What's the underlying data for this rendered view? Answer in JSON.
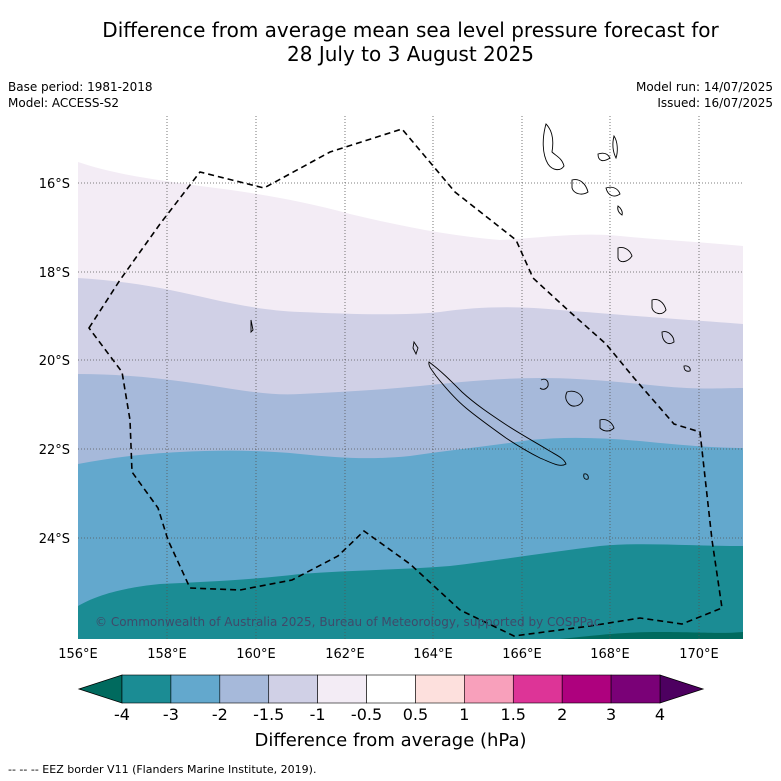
{
  "title_line1": "Difference from average mean sea level pressure forecast for",
  "title_line2": "28 July to 3 August 2025",
  "meta_left": {
    "line1": "Base period: 1981-2018",
    "line2": "Model: ACCESS-S2"
  },
  "meta_right": {
    "line1": "Model run: 14/07/2025",
    "line2": "Issued: 16/07/2025"
  },
  "copyright": "© Commonwealth of Australia 2025, Bureau of Meteorology, supported by COSPPac",
  "lat_labels": [
    "16°S",
    "18°S",
    "20°S",
    "22°S",
    "24°S"
  ],
  "lon_labels": [
    "156°E",
    "158°E",
    "160°E",
    "162°E",
    "164°E",
    "166°E",
    "168°E",
    "170°E"
  ],
  "colorbar": {
    "ticks": [
      "-4",
      "-3",
      "-2",
      "-1.5",
      "-1",
      "-0.5",
      "0.5",
      "1",
      "1.5",
      "2",
      "3",
      "4"
    ],
    "colors": [
      "#1b8c94",
      "#63a8cd",
      "#a6b9da",
      "#d0d0e6",
      "#f3ecf5",
      "#ffffff",
      "#fde0dd",
      "#f8a0bb",
      "#dd3497",
      "#ae017e",
      "#7a0177"
    ],
    "under_color": "#006a5e",
    "over_color": "#4d0060",
    "label": "Difference from average (hPa)"
  },
  "footnote": "--  --  -- EEZ border V11 (Flanders Marine Institute, 2019).",
  "colors": {
    "band_lt_m4": "#006a5e",
    "band_m4_m3": "#1b8c94",
    "band_m3_m2": "#63a8cd",
    "band_m2_m15": "#a6b9da",
    "band_m15_m1": "#d0d0e6",
    "band_m1_m05": "#f3ecf5",
    "band_neutral": "#ffffff"
  }
}
